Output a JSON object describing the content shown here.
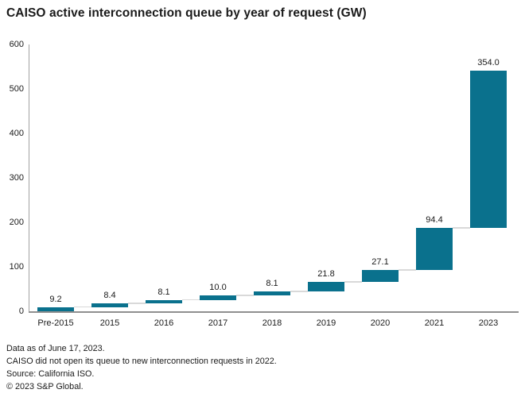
{
  "title": "CAISO active interconnection queue by year of request (GW)",
  "chart_data": {
    "type": "bar",
    "subtype": "waterfall",
    "title": "CAISO active interconnection queue by year of request (GW)",
    "unit": "GW",
    "categories": [
      "Pre-2015",
      "2015",
      "2016",
      "2017",
      "2018",
      "2019",
      "2020",
      "2021",
      "2023"
    ],
    "values": [
      9.2,
      8.4,
      8.1,
      10.0,
      8.1,
      21.8,
      27.1,
      94.4,
      354.0
    ],
    "value_labels": [
      "9.2",
      "8.4",
      "8.1",
      "10.0",
      "8.1",
      "21.8",
      "27.1",
      "94.4",
      "354.0"
    ],
    "cumulative_totals": [
      9.2,
      17.6,
      25.7,
      35.7,
      43.8,
      65.6,
      92.7,
      187.1,
      541.1
    ],
    "xlabel": "",
    "ylabel": "",
    "ylim": [
      0,
      600
    ],
    "yticks": [
      0,
      100,
      200,
      300,
      400,
      500,
      600
    ],
    "grid": "off",
    "legend": "none",
    "colors": {
      "bar": "#0A718D",
      "connector": "#d9d9d9",
      "y_axis": "#a3a3a3",
      "x_axis": "#8f8f8f",
      "text": "#1a1a1a"
    }
  },
  "footnotes": [
    "Data as of June 17, 2023.",
    "CAISO did not open its queue to new interconnection requests in 2022.",
    "Source: California ISO.",
    "© 2023 S&P Global."
  ]
}
